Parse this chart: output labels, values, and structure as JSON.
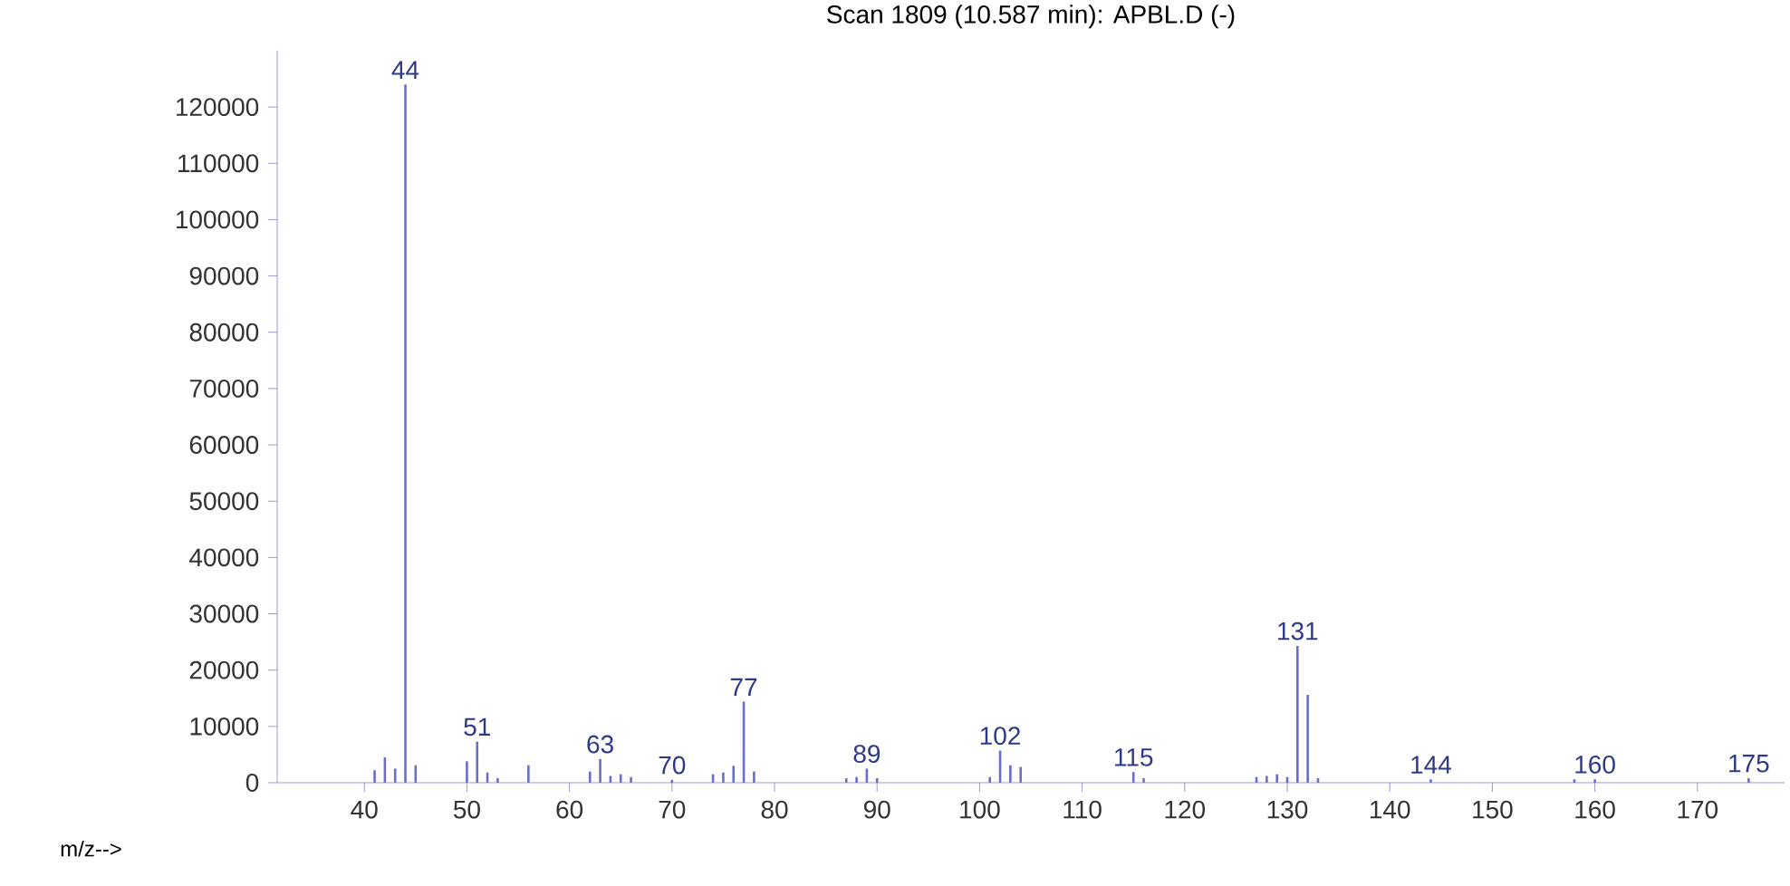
{
  "chart_data": {
    "type": "bar",
    "title": "Scan 1809 (10.587 min): APBL.D (-)",
    "xlabel": "m/z-->",
    "x": [
      41,
      42,
      43,
      44,
      45,
      50,
      51,
      52,
      53,
      56,
      62,
      63,
      64,
      65,
      66,
      70,
      74,
      75,
      76,
      77,
      78,
      87,
      88,
      89,
      90,
      101,
      102,
      103,
      104,
      115,
      116,
      127,
      128,
      129,
      130,
      131,
      132,
      133,
      144,
      158,
      160,
      175
    ],
    "values": [
      2200,
      4500,
      2500,
      124000,
      3100,
      3800,
      7300,
      1800,
      800,
      3100,
      2000,
      4200,
      1200,
      1500,
      1000,
      500,
      1500,
      1800,
      3000,
      14400,
      2000,
      800,
      1000,
      2500,
      800,
      1000,
      5700,
      3100,
      2800,
      1900,
      800,
      1000,
      1200,
      1500,
      1000,
      24300,
      15600,
      800,
      600,
      600,
      600,
      800
    ],
    "color": "#6a6ec8",
    "xlim": [
      31.5,
      178.5
    ],
    "ylim": [
      0,
      130000
    ],
    "xticks": [
      40,
      50,
      60,
      70,
      80,
      90,
      100,
      110,
      120,
      130,
      140,
      150,
      160,
      170
    ],
    "yticks": [
      0,
      10000,
      20000,
      30000,
      40000,
      50000,
      60000,
      70000,
      80000,
      90000,
      100000,
      110000,
      120000
    ],
    "annotations": [
      {
        "text": "44",
        "x": 44,
        "y": 124000
      },
      {
        "text": "51",
        "x": 51,
        "y": 7300
      },
      {
        "text": "63",
        "x": 63,
        "y": 4200
      },
      {
        "text": "70",
        "x": 70,
        "y": 500
      },
      {
        "text": "77",
        "x": 77,
        "y": 14400
      },
      {
        "text": "89",
        "x": 89,
        "y": 2500
      },
      {
        "text": "102",
        "x": 102,
        "y": 5700
      },
      {
        "text": "115",
        "x": 115,
        "y": 1900
      },
      {
        "text": "131",
        "x": 131,
        "y": 24300
      },
      {
        "text": "144",
        "x": 144,
        "y": 600
      },
      {
        "text": "160",
        "x": 160,
        "y": 600
      },
      {
        "text": "175",
        "x": 175,
        "y": 800
      }
    ]
  }
}
